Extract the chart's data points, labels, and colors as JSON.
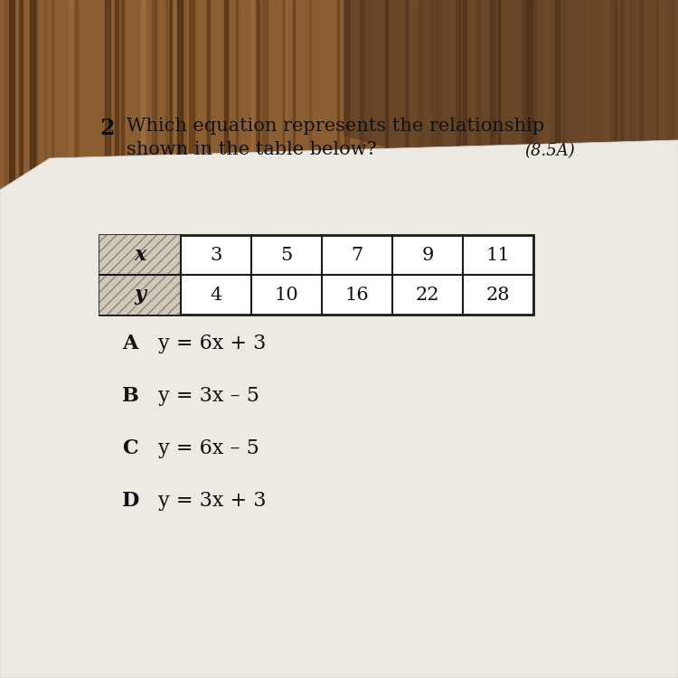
{
  "question_number": "2",
  "question_text": "Which equation represents the relationship\nshown in the table below?",
  "standard": "(8.5A)",
  "table": {
    "headers": [
      "x",
      "y"
    ],
    "x_values": [
      "3",
      "5",
      "7",
      "9",
      "11"
    ],
    "y_values": [
      "4",
      "10",
      "16",
      "22",
      "28"
    ]
  },
  "choices": [
    {
      "letter": "A",
      "equation": "y = 6x + 3"
    },
    {
      "letter": "B",
      "equation": "y = 3x – 5"
    },
    {
      "letter": "C",
      "equation": "y = 6x – 5"
    },
    {
      "letter": "D",
      "equation": "y = 3x + 3"
    }
  ],
  "wood_colors": [
    "#7a4f28",
    "#8b5e32",
    "#6e4520",
    "#9a6a3a",
    "#7a5030",
    "#5a3818"
  ],
  "paper_color": "#edeae4",
  "table_border_color": "#1a1a1a",
  "text_color": "#111111",
  "font_size_question": 15,
  "font_size_table": 14,
  "font_size_choices": 16,
  "font_size_standard": 13,
  "font_size_number": 17
}
